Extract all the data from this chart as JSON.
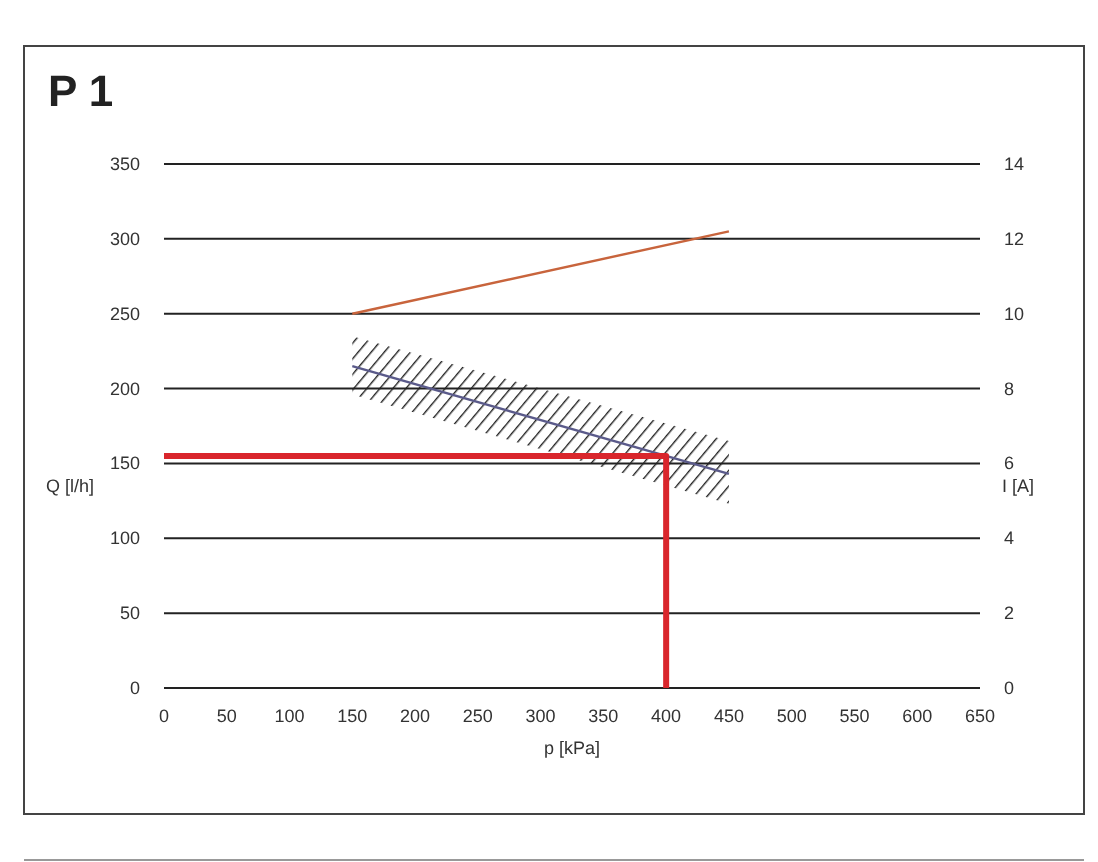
{
  "chart_data": {
    "type": "line",
    "title": "P 1",
    "xlabel": "p [kPa]",
    "ylabel": "Q [l/h]",
    "y2label": "I [A]",
    "xlim": [
      0,
      650
    ],
    "xticks": [
      0,
      50,
      100,
      150,
      200,
      250,
      300,
      350,
      400,
      450,
      500,
      550,
      600,
      650
    ],
    "ylim": [
      0,
      350
    ],
    "yticks": [
      0,
      50,
      100,
      150,
      200,
      250,
      300,
      350
    ],
    "y2lim": [
      0,
      14
    ],
    "y2ticks": [
      0,
      2,
      4,
      6,
      8,
      10,
      12,
      14
    ],
    "grid": "y",
    "marker": "none",
    "line_style": "solid",
    "series": [
      {
        "color": "#c8643c",
        "axis": "y2",
        "x": [
          150,
          450
        ],
        "values": [
          10,
          12.2
        ]
      },
      {
        "color": "#5a5a8a",
        "x": [
          150,
          450
        ],
        "values": [
          215,
          143
        ],
        "lower": [
          196,
          123
        ],
        "upper": [
          235,
          165
        ]
      },
      {
        "color": "#d9262c",
        "x": [
          0,
          400,
          400
        ],
        "values": [
          155,
          155,
          0
        ]
      }
    ]
  }
}
